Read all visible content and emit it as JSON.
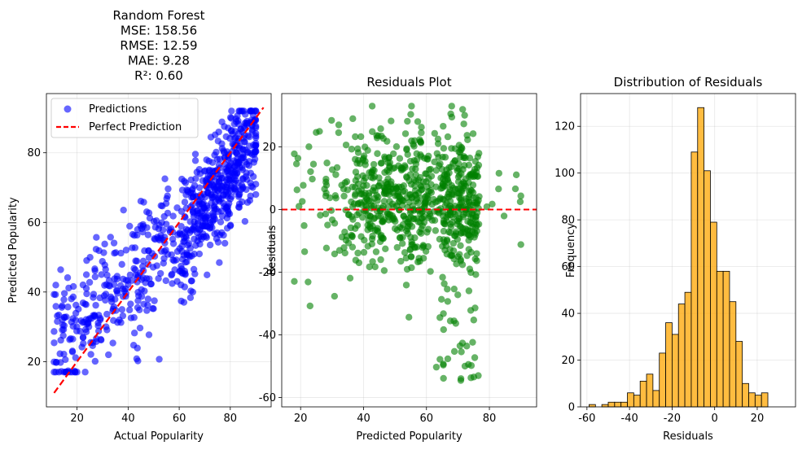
{
  "chart_data": [
    {
      "type": "scatter",
      "title_lines": [
        "Random Forest",
        "MSE: 158.56",
        "RMSE: 12.59",
        "MAE: 9.28",
        "R²: 0.60"
      ],
      "xlabel": "Actual Popularity",
      "ylabel": "Predicted Popularity",
      "xlim": [
        8,
        96
      ],
      "ylim": [
        7,
        97
      ],
      "xticks": [
        20,
        40,
        60,
        80
      ],
      "yticks": [
        20,
        40,
        60,
        80
      ],
      "grid": true,
      "legend": {
        "placement": "top-left",
        "entries": [
          "Predictions",
          "Perfect Prediction"
        ]
      },
      "series": [
        {
          "name": "Predictions",
          "color": "#0000ff",
          "alpha": 0.6,
          "kind": "scatter",
          "approx_count": 800
        },
        {
          "name": "Perfect Prediction",
          "color": "#ff0000",
          "kind": "dashed-line",
          "x": [
            11,
            93
          ],
          "y": [
            11,
            93
          ]
        }
      ]
    },
    {
      "type": "scatter",
      "title": "Residuals Plot",
      "xlabel": "Predicted Popularity",
      "ylabel": "Residuals",
      "xlim": [
        14,
        95
      ],
      "ylim": [
        -63,
        37
      ],
      "xticks": [
        20,
        40,
        60,
        80
      ],
      "yticks": [
        -60,
        -40,
        -20,
        0,
        20
      ],
      "grid": true,
      "reference_line": {
        "y": 0,
        "color": "#ff0000",
        "style": "dashed"
      },
      "series": [
        {
          "name": "Residuals",
          "color": "#008000",
          "alpha": 0.6,
          "kind": "scatter",
          "approx_count": 800
        }
      ]
    },
    {
      "type": "bar",
      "title": "Distribution of Residuals",
      "xlabel": "Residuals",
      "ylabel": "Frequency",
      "xlim": [
        -63,
        38
      ],
      "ylim": [
        0,
        134
      ],
      "xticks": [
        -60,
        -40,
        -20,
        0,
        20
      ],
      "yticks": [
        0,
        20,
        40,
        60,
        80,
        100,
        120
      ],
      "grid": true,
      "bar_color": "#ffa500",
      "bin_start": -59,
      "bin_width": 3,
      "values": [
        1,
        0,
        1,
        2,
        2,
        2,
        6,
        5,
        11,
        14,
        7,
        23,
        36,
        31,
        44,
        49,
        109,
        128,
        101,
        79,
        58,
        58,
        45,
        28,
        10,
        6,
        5,
        6
      ]
    }
  ]
}
